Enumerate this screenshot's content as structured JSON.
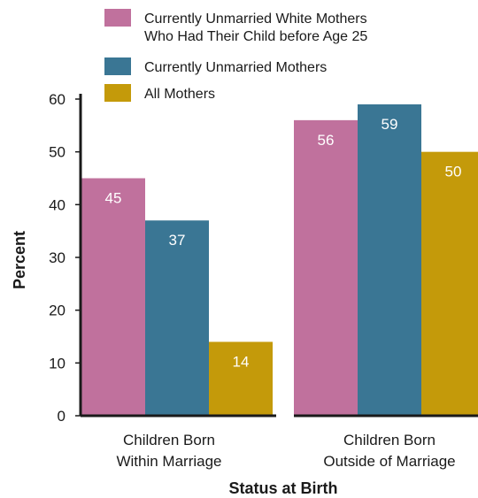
{
  "chart_data": {
    "type": "bar",
    "title": "",
    "xlabel": "Status at Birth",
    "ylabel": "Percent",
    "ylim": [
      0,
      60
    ],
    "yticks": [
      0,
      10,
      20,
      30,
      40,
      50,
      60
    ],
    "grid": false,
    "legend_position": "top",
    "categories": [
      [
        "Children Born",
        "Within Marriage"
      ],
      [
        "Children Born",
        "Outside of Marriage"
      ]
    ],
    "series": [
      {
        "name": [
          "Currently Unmarried White Mothers",
          "Who Had Their Child before Age 25"
        ],
        "color": "#c0719d",
        "values": [
          45,
          56
        ]
      },
      {
        "name": [
          "Currently Unmarried Mothers"
        ],
        "color": "#3a7694",
        "values": [
          37,
          59
        ]
      },
      {
        "name": [
          "All Mothers"
        ],
        "color": "#c49a0a",
        "values": [
          14,
          50
        ]
      }
    ]
  }
}
